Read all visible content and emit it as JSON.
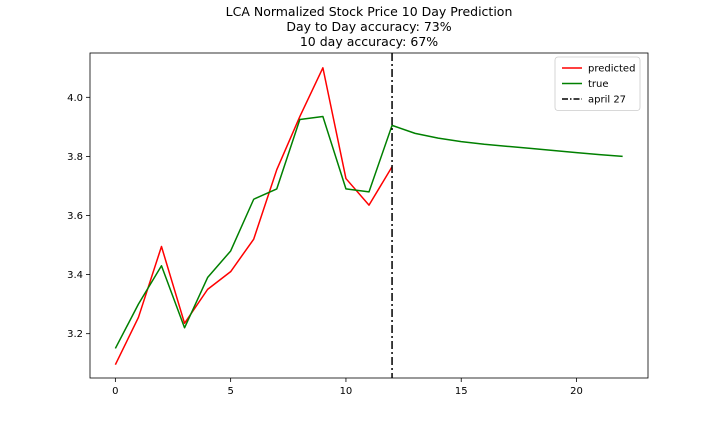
{
  "chart_data": {
    "type": "line",
    "title": "LCA Normalized Stock Price 10 Day Prediction",
    "subtitle_lines": [
      "Day to Day accuracy: 73%",
      "10 day accuracy: 67%"
    ],
    "xlabel": "",
    "ylabel": "",
    "xlim": [
      -1.1,
      23.1
    ],
    "ylim": [
      3.05,
      4.15
    ],
    "xticks": [
      0,
      5,
      10,
      15,
      20
    ],
    "yticks": [
      3.2,
      3.4,
      3.6,
      3.8,
      4.0
    ],
    "ytick_labels": [
      "3.2",
      "3.4",
      "3.6",
      "3.8",
      "4.0"
    ],
    "grid": false,
    "legend_position": "top-right",
    "series": [
      {
        "name": "predicted",
        "color": "#ff0000",
        "style": "solid",
        "x": [
          0,
          1,
          2,
          3,
          4,
          5,
          6,
          7,
          8,
          9,
          10,
          11,
          12
        ],
        "y": [
          3.095,
          3.255,
          3.495,
          3.235,
          3.35,
          3.41,
          3.52,
          3.755,
          3.935,
          4.1,
          3.725,
          3.635,
          3.765
        ]
      },
      {
        "name": "true",
        "color": "#008000",
        "style": "solid",
        "x": [
          0,
          1,
          2,
          3,
          4,
          5,
          6,
          7,
          8,
          9,
          10,
          11,
          12,
          13,
          14,
          15,
          16,
          17,
          18,
          19,
          20,
          21,
          22
        ],
        "y": [
          3.15,
          3.3,
          3.43,
          3.22,
          3.39,
          3.48,
          3.655,
          3.69,
          3.925,
          3.935,
          3.69,
          3.68,
          3.905,
          3.878,
          3.862,
          3.85,
          3.841,
          3.834,
          3.827,
          3.82,
          3.813,
          3.806,
          3.8
        ]
      }
    ],
    "vlines": [
      {
        "name": "april 27",
        "x": 12,
        "color": "#000000",
        "style": "dashdot"
      }
    ]
  }
}
